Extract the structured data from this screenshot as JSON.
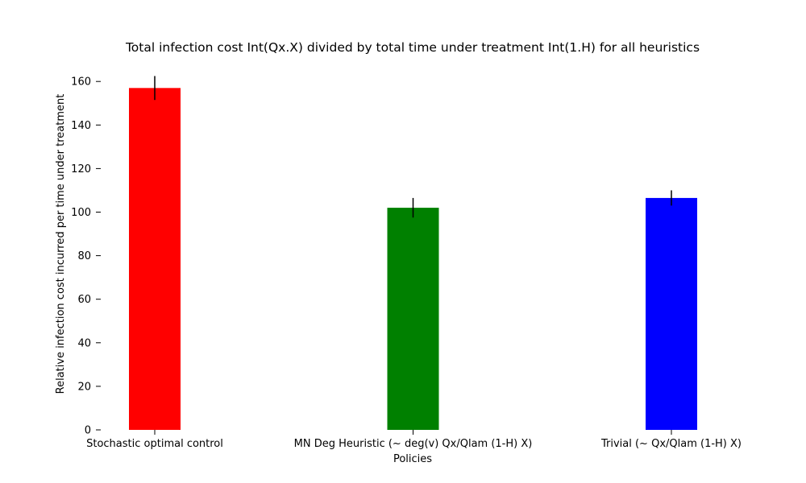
{
  "chart_data": {
    "type": "bar",
    "title": "Total infection cost Int(Qx.X) divided by total time under treatment Int(1.H) for all heuristics",
    "xlabel": "Policies",
    "ylabel": "Relative infection cost incurred per time under treatment",
    "categories": [
      "Stochastic optimal control",
      "MN Deg Heuristic (~ deg(v) Qx/Qlam (1-H) X)",
      "Trivial (~ Qx/Qlam (1-H) X)"
    ],
    "values": [
      157,
      102,
      106.5
    ],
    "errors": [
      5.5,
      4.5,
      3.5
    ],
    "colors": [
      "#ff0000",
      "#008000",
      "#0000ff"
    ],
    "ylim": [
      0,
      160
    ],
    "yticks": [
      0,
      20,
      40,
      60,
      80,
      100,
      120,
      140,
      160
    ],
    "grid": false,
    "legend": "none"
  }
}
